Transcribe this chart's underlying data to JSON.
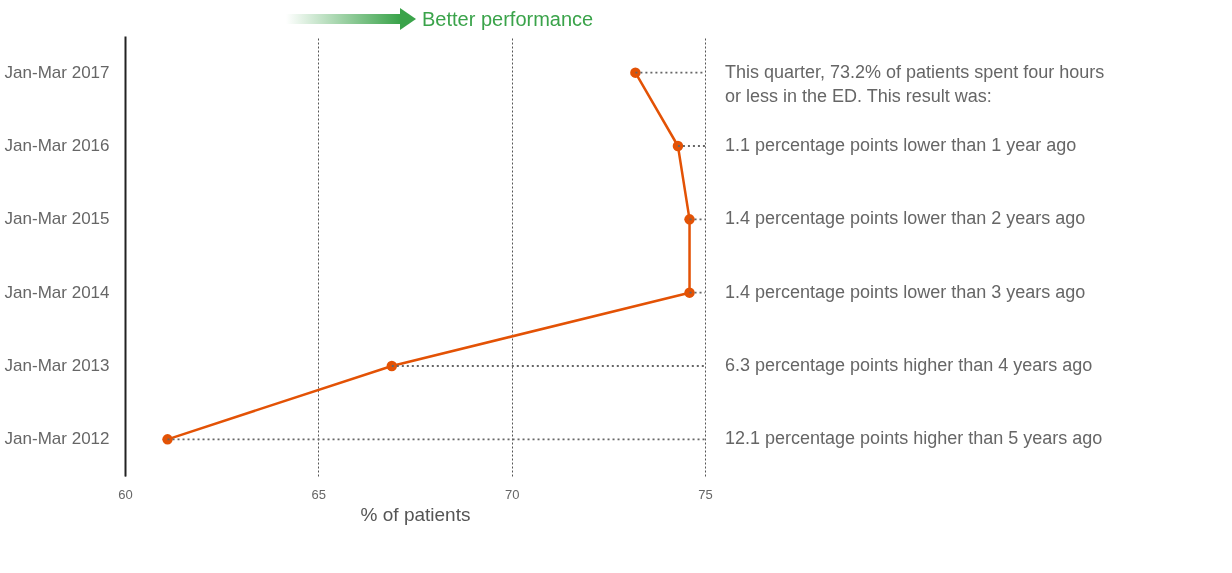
{
  "chart_data": {
    "type": "line",
    "orientation": "horizontal",
    "xlabel": "% of patients",
    "categories": [
      "Jan-Mar 2017",
      "Jan-Mar 2016",
      "Jan-Mar 2015",
      "Jan-Mar 2014",
      "Jan-Mar 2013",
      "Jan-Mar 2012"
    ],
    "series": [
      {
        "color": "#e35205",
        "values": [
          73.2,
          74.3,
          74.6,
          74.6,
          66.9,
          61.1
        ]
      }
    ],
    "xlim": [
      60,
      75
    ],
    "xticks": [
      60,
      65,
      70,
      75
    ],
    "grid": "x",
    "marker": "circle",
    "annotations": [
      "Better performance",
      {
        "text": "This quarter, 73.2% of patients spent four hours or less in the ED. This result was:",
        "x": 73.2,
        "y": "Jan-Mar 2017"
      },
      {
        "text": "1.1 percentage points lower than 1 year ago",
        "x": 74.3,
        "y": "Jan-Mar 2016"
      },
      {
        "text": "1.4 percentage points lower than 2 years ago",
        "x": 74.6,
        "y": "Jan-Mar 2015"
      },
      {
        "text": "1.4 percentage points lower than 3 years ago",
        "x": 74.6,
        "y": "Jan-Mar 2014"
      },
      {
        "text": "6.3 percentage points higher than 4 years ago",
        "x": 66.9,
        "y": "Jan-Mar 2013"
      },
      {
        "text": "12.1 percentage points higher than 5 years ago",
        "x": 61.1,
        "y": "Jan-Mar 2012"
      }
    ]
  }
}
